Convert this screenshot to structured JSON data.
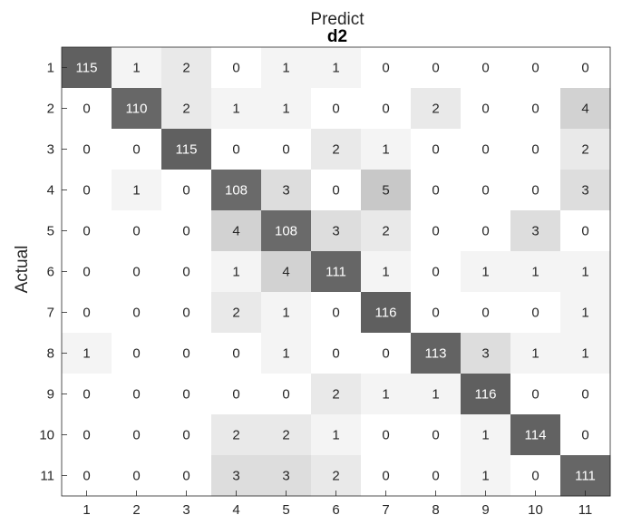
{
  "chart_data": {
    "type": "heatmap",
    "title": "Predict",
    "subtitle": "d2",
    "xlabel": "",
    "ylabel": "Actual",
    "x_categories": [
      "1",
      "2",
      "3",
      "4",
      "5",
      "6",
      "7",
      "8",
      "9",
      "10",
      "11"
    ],
    "y_categories": [
      "1",
      "2",
      "3",
      "4",
      "5",
      "6",
      "7",
      "8",
      "9",
      "10",
      "11"
    ],
    "values": [
      [
        115,
        1,
        2,
        0,
        1,
        1,
        0,
        0,
        0,
        0,
        0
      ],
      [
        0,
        110,
        2,
        1,
        1,
        0,
        0,
        2,
        0,
        0,
        4
      ],
      [
        0,
        0,
        115,
        0,
        0,
        2,
        1,
        0,
        0,
        0,
        2
      ],
      [
        0,
        1,
        0,
        108,
        3,
        0,
        5,
        0,
        0,
        0,
        3
      ],
      [
        0,
        0,
        0,
        4,
        108,
        3,
        2,
        0,
        0,
        3,
        0
      ],
      [
        0,
        0,
        0,
        1,
        4,
        111,
        1,
        0,
        1,
        1,
        1
      ],
      [
        0,
        0,
        0,
        2,
        1,
        0,
        116,
        0,
        0,
        0,
        1
      ],
      [
        1,
        0,
        0,
        0,
        1,
        0,
        0,
        113,
        3,
        1,
        1
      ],
      [
        0,
        0,
        0,
        0,
        0,
        2,
        1,
        1,
        116,
        0,
        0
      ],
      [
        0,
        0,
        0,
        2,
        2,
        1,
        0,
        0,
        1,
        114,
        0
      ],
      [
        0,
        0,
        0,
        3,
        3,
        2,
        0,
        0,
        1,
        0,
        111
      ]
    ],
    "colormap": "gray",
    "grid": false
  }
}
